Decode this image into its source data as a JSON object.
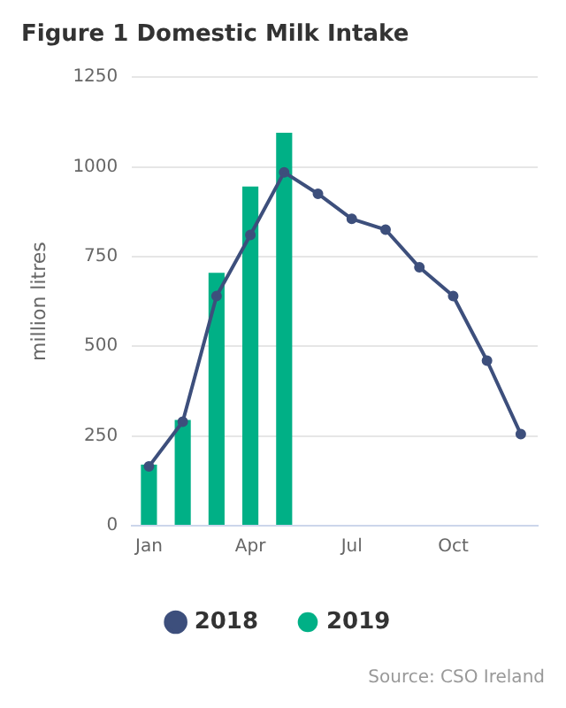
{
  "chart_data": {
    "type": "bar",
    "title": "Figure 1 Domestic Milk Intake",
    "ylabel": "million litres",
    "categories": [
      "Jan",
      null,
      null,
      "Apr",
      null,
      null,
      "Jul",
      null,
      null,
      "Oct",
      null,
      null
    ],
    "series": [
      {
        "name": "2018",
        "type": "line",
        "color": "#3d4f7c",
        "values": [
          165,
          290,
          640,
          810,
          985,
          925,
          855,
          825,
          720,
          640,
          460,
          255
        ]
      },
      {
        "name": "2019",
        "color": "#00b086",
        "values": [
          170,
          295,
          705,
          945,
          1095,
          null,
          null,
          null,
          null,
          null,
          null,
          null
        ]
      }
    ],
    "ylim": [
      0,
      1250
    ],
    "yticks": [
      0,
      250,
      500,
      750,
      1000,
      1250
    ],
    "grid": "y",
    "legend": "bottom",
    "marker": "circle",
    "annotations": [
      "Source: CSO Ireland"
    ]
  }
}
